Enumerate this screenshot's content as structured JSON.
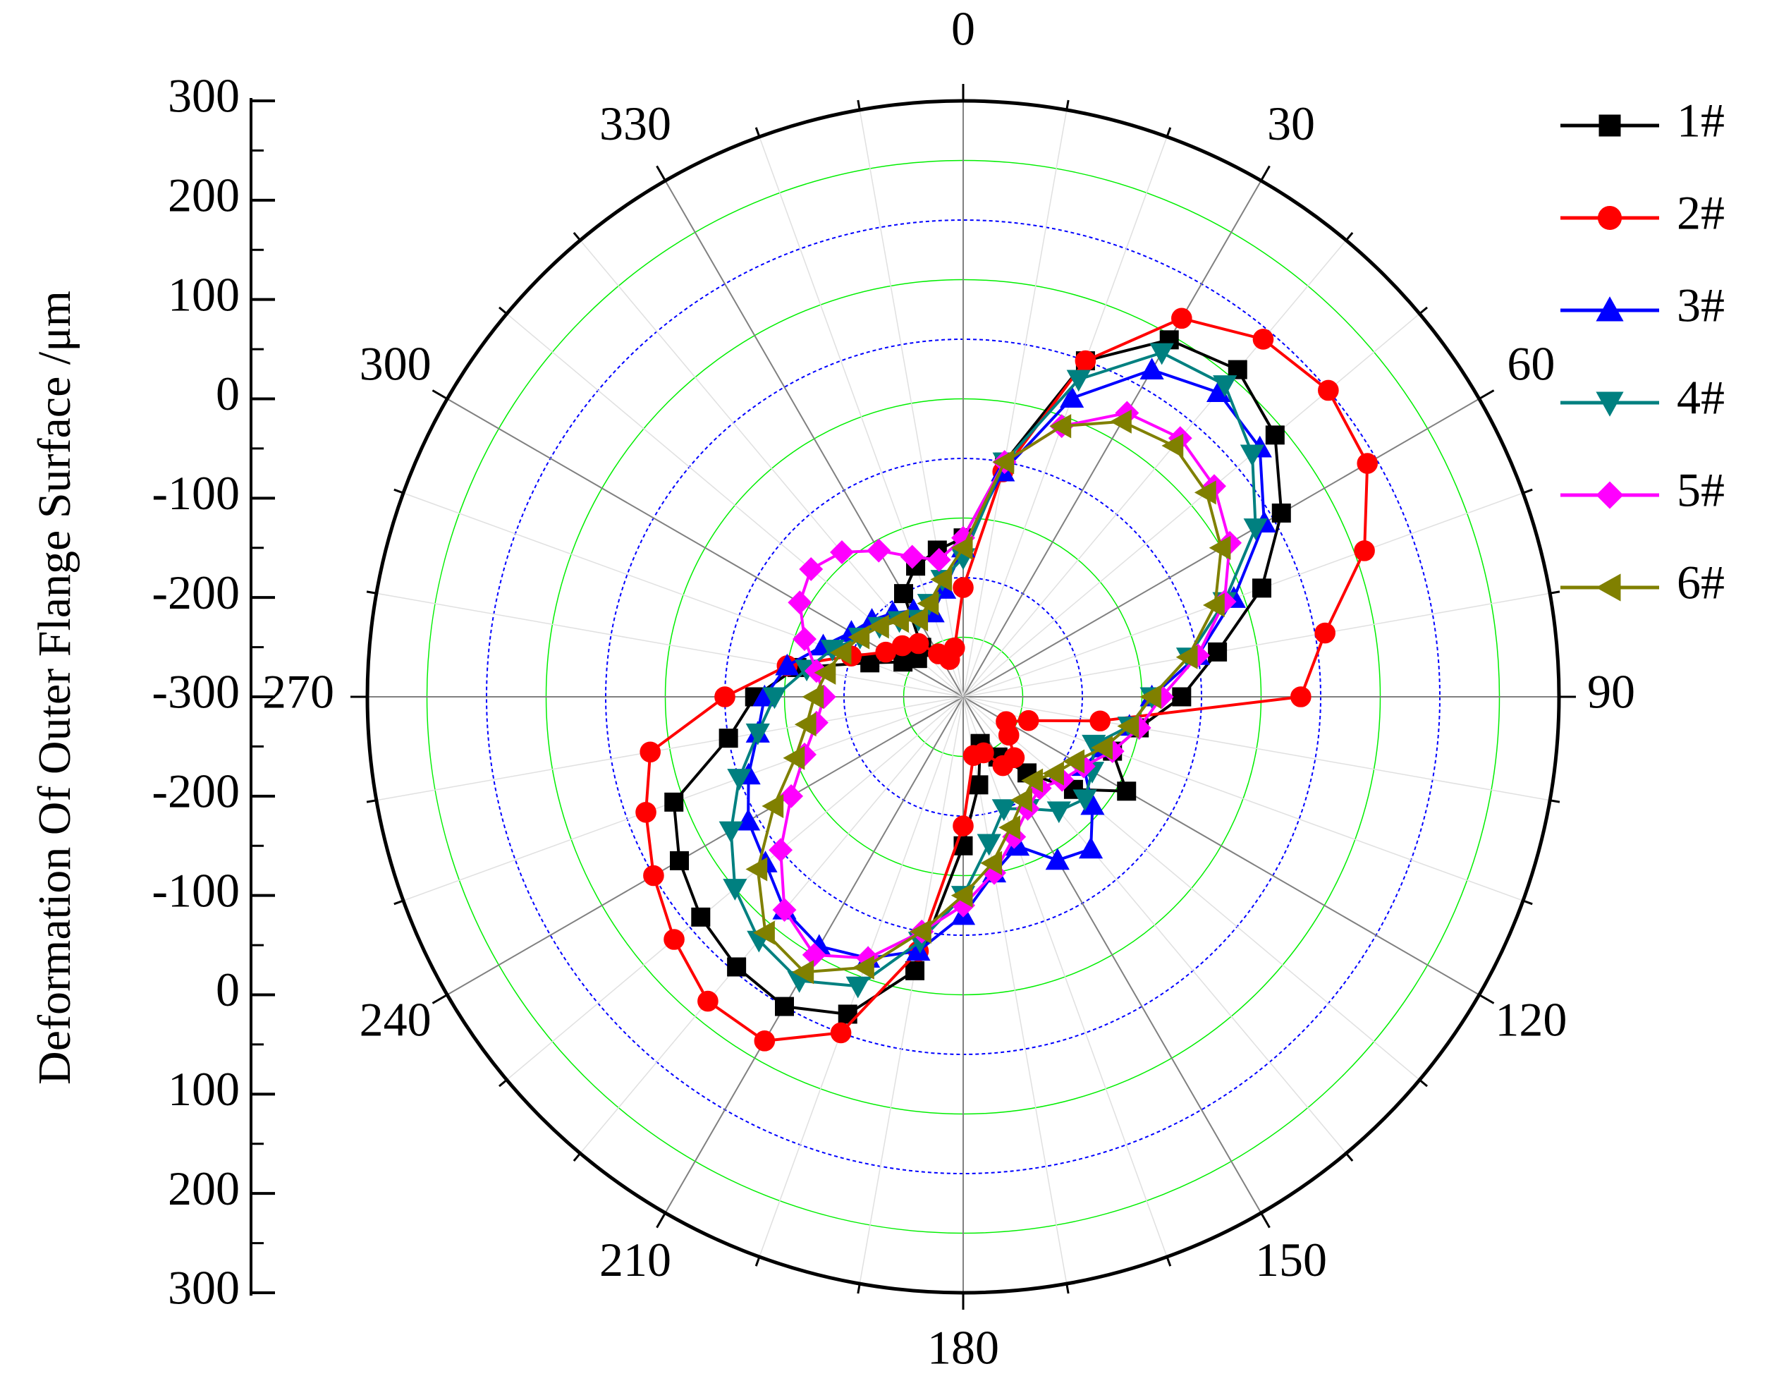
{
  "chart_data": {
    "type": "polar-line",
    "title": "",
    "ylabel": "Deformation Of Outer Flange Surface /μm",
    "radial_axis": {
      "min": -300,
      "max": 300,
      "ticks": [
        300,
        200,
        100,
        0,
        -100,
        -200,
        -300,
        -200,
        -100,
        0,
        100,
        200,
        300
      ],
      "tick_labels": [
        "300",
        "200",
        "100",
        "0",
        "-100",
        "-200",
        "-300",
        "-200",
        "-100",
        "0",
        "100",
        "200",
        "300"
      ]
    },
    "angular_axis": {
      "unit": "degree",
      "direction": "clockwise",
      "zero": "top",
      "labels": [
        "0",
        "30",
        "60",
        "90",
        "120",
        "150",
        "180",
        "210",
        "240",
        "270",
        "300",
        "330"
      ]
    },
    "series": [
      {
        "name": "1#",
        "color": "#000000",
        "marker": "square",
        "angles": [
          0,
          10,
          20,
          30,
          40,
          50,
          60,
          70,
          80,
          90,
          100,
          110,
          120,
          130,
          140,
          150,
          160,
          170,
          180,
          190,
          200,
          210,
          220,
          230,
          240,
          250,
          260,
          270,
          280,
          290,
          300,
          310,
          320,
          330,
          340,
          350
        ],
        "values": [
          -140,
          -60,
          60,
          115,
          130,
          110,
          70,
          20,
          -40,
          -80,
          -120,
          -140,
          -110,
          -155,
          -200,
          -230,
          -250,
          -210,
          -150,
          -20,
          40,
          60,
          55,
          45,
          30,
          10,
          -60,
          -90,
          -130,
          -200,
          -230,
          -240,
          -235,
          -180,
          -160,
          -150
        ]
      },
      {
        "name": "2#",
        "color": "#ff0000",
        "marker": "circle",
        "angles": [
          0,
          10,
          20,
          30,
          40,
          50,
          60,
          70,
          80,
          90,
          100,
          110,
          120,
          130,
          140,
          150,
          160,
          170,
          180,
          190,
          200,
          210,
          220,
          230,
          240,
          250,
          260,
          270,
          280,
          290,
          300,
          310,
          320,
          330,
          340,
          350
        ],
        "values": [
          -190,
          -70,
          60,
          140,
          170,
          180,
          170,
          130,
          70,
          40,
          -160,
          -230,
          -250,
          -240,
          -220,
          -220,
          -240,
          -240,
          -170,
          -40,
          60,
          100,
          100,
          80,
          60,
          40,
          20,
          -60,
          -120,
          -180,
          -210,
          -220,
          -230,
          -250,
          -260,
          -250
        ]
      },
      {
        "name": "3#",
        "color": "#0000ff",
        "marker": "triangle-up",
        "angles": [
          0,
          10,
          20,
          30,
          40,
          50,
          60,
          70,
          80,
          90,
          100,
          110,
          120,
          130,
          140,
          150,
          160,
          170,
          180,
          190,
          200,
          210,
          220,
          230,
          240,
          250,
          260,
          270,
          280,
          290,
          300,
          310,
          320,
          330,
          340,
          350
        ],
        "values": [
          -150,
          -70,
          20,
          80,
          100,
          90,
          50,
          -10,
          -60,
          -110,
          -130,
          -150,
          -160,
          -130,
          -100,
          -110,
          -140,
          -120,
          -80,
          -40,
          -20,
          -10,
          -20,
          -40,
          -50,
          -70,
          -90,
          -100,
          -120,
          -150,
          -170,
          -180,
          -190,
          -200,
          -210,
          -190
        ]
      },
      {
        "name": "4#",
        "color": "#008080",
        "marker": "triangle-down",
        "angles": [
          0,
          10,
          20,
          30,
          40,
          50,
          60,
          70,
          80,
          90,
          100,
          110,
          120,
          130,
          140,
          150,
          160,
          170,
          180,
          190,
          200,
          210,
          220,
          230,
          240,
          250,
          260,
          270,
          280,
          290,
          300,
          310,
          320,
          330,
          340,
          350
        ],
        "values": [
          -160,
          -60,
          40,
          100,
          110,
          80,
          40,
          -20,
          -70,
          -110,
          -130,
          -160,
          -150,
          -140,
          -150,
          -170,
          -180,
          -150,
          -100,
          -50,
          10,
          30,
          20,
          0,
          -30,
          -60,
          -90,
          -110,
          -140,
          -160,
          -180,
          -190,
          -200,
          -210,
          -200,
          -180
        ]
      },
      {
        "name": "5#",
        "color": "#ff00ff",
        "marker": "diamond",
        "angles": [
          0,
          10,
          20,
          30,
          40,
          50,
          60,
          70,
          80,
          90,
          100,
          110,
          120,
          130,
          140,
          150,
          160,
          170,
          180,
          190,
          200,
          210,
          220,
          230,
          240,
          250,
          260,
          270,
          280,
          290,
          300,
          310,
          320,
          330,
          340,
          350
        ],
        "values": [
          -140,
          -60,
          -10,
          30,
          40,
          30,
          10,
          -20,
          -60,
          -100,
          -120,
          -140,
          -160,
          -170,
          -180,
          -170,
          -150,
          -120,
          -90,
          -60,
          -20,
          0,
          -20,
          -60,
          -100,
          -130,
          -150,
          -160,
          -150,
          -130,
          -110,
          -100,
          -110,
          -130,
          -150,
          -160
        ]
      },
      {
        "name": "6#",
        "color": "#808000",
        "marker": "triangle-left",
        "angles": [
          0,
          10,
          20,
          30,
          40,
          50,
          60,
          70,
          80,
          90,
          100,
          110,
          120,
          130,
          140,
          150,
          160,
          170,
          180,
          190,
          200,
          210,
          220,
          230,
          240,
          250,
          260,
          270,
          280,
          290,
          300,
          310,
          320,
          330,
          340,
          350
        ],
        "values": [
          -150,
          -60,
          -10,
          20,
          30,
          20,
          0,
          -30,
          -70,
          -110,
          -130,
          -150,
          -170,
          -180,
          -190,
          -180,
          -160,
          -130,
          -100,
          -60,
          -10,
          20,
          10,
          -30,
          -80,
          -120,
          -140,
          -150,
          -160,
          -170,
          -180,
          -190,
          -200,
          -210,
          -200,
          -180
        ]
      }
    ],
    "legend": {
      "position": "top-right"
    },
    "grid": {
      "radial_minor": true,
      "circles": true
    }
  }
}
